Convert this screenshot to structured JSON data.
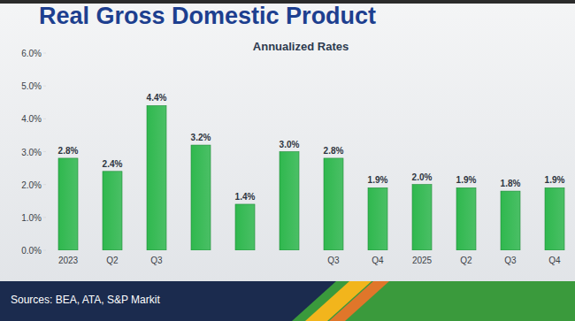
{
  "chart_data": {
    "type": "bar",
    "title": "Real Gross Domestic Product",
    "subtitle": "Annualized Rates",
    "categories": [
      "2023",
      "Q2",
      "Q3",
      null,
      null,
      null,
      "Q3",
      "Q4",
      "2025",
      "Q2",
      "Q3",
      "Q4"
    ],
    "values": [
      2.8,
      2.4,
      4.4,
      3.2,
      1.4,
      3.0,
      2.8,
      1.9,
      2.0,
      1.9,
      1.8,
      1.9
    ],
    "value_labels": [
      "2.8%",
      "2.4%",
      "4.4%",
      "3.2%",
      "1.4%",
      "3.0%",
      "2.8%",
      "1.9%",
      "2.0%",
      "1.9%",
      "1.8%",
      "1.9%"
    ],
    "color": "#2fb84e",
    "ylim": [
      0,
      6
    ],
    "yticks": [
      {
        "value": 0,
        "label": "0.0%"
      },
      {
        "value": 1,
        "label": "1.0%"
      },
      {
        "value": 2,
        "label": "2.0%"
      },
      {
        "value": 3,
        "label": "3.0%"
      },
      {
        "value": 4,
        "label": "4.0%"
      },
      {
        "value": 5,
        "label": "5.0%"
      },
      {
        "value": 6,
        "label": "6.0%"
      }
    ],
    "grid": false,
    "data_labels": true,
    "source": "Sources: BEA, ATA, S&P Markit"
  }
}
